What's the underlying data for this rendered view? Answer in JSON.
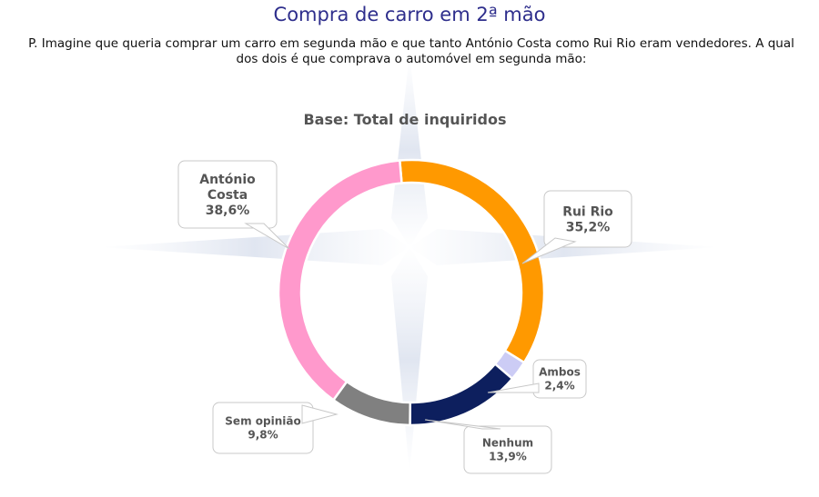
{
  "header": {
    "title": "Compra de carro em 2ª mão",
    "question": "P. Imagine que queria comprar um carro em segunda mão e que tanto António Costa como Rui Rio eram vendedores. A qual dos dois é que comprava o automóvel em segunda mão:"
  },
  "chart_data": {
    "type": "pie",
    "subtitle": "Base: Total de inquiridos",
    "slices": [
      {
        "label_lines": [
          "Rui Rio"
        ],
        "value": 35.2,
        "display": "35,2%",
        "color": "#ff9900"
      },
      {
        "label_lines": [
          "Ambos"
        ],
        "value": 2.4,
        "display": "2,4%",
        "color": "#ccccf5"
      },
      {
        "label_lines": [
          "Nenhum"
        ],
        "value": 13.9,
        "display": "13,9%",
        "color": "#0d1f5e"
      },
      {
        "label_lines": [
          "Sem opinião"
        ],
        "value": 9.8,
        "display": "9,8%",
        "color": "#808080"
      },
      {
        "label_lines": [
          "António",
          "Costa"
        ],
        "value": 38.6,
        "display": "38,6%",
        "color": "#ff99cc"
      }
    ]
  }
}
